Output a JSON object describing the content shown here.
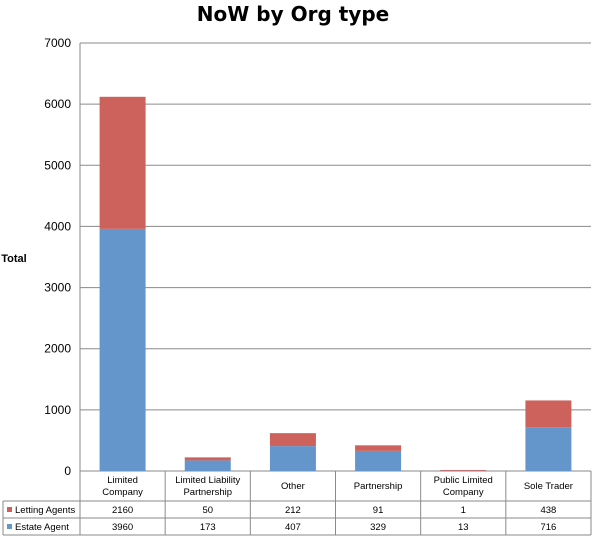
{
  "chart_data": {
    "type": "bar",
    "stacked": true,
    "title": "NoW by Org type",
    "xlabel": "",
    "ylabel": "Total",
    "ylim": [
      0,
      7000
    ],
    "yticks": [
      0,
      1000,
      2000,
      3000,
      4000,
      5000,
      6000,
      7000
    ],
    "grid": true,
    "legend_placement": "data-table",
    "categories": [
      [
        "Limited",
        "Company"
      ],
      [
        "Limited Liability",
        "Partnership"
      ],
      [
        "Other"
      ],
      [
        "Partnership"
      ],
      [
        "Public Limited",
        "Company"
      ],
      [
        "Sole Trader"
      ]
    ],
    "series": [
      {
        "name": "Estate Agent",
        "color": "#6496CC",
        "values": [
          3960,
          173,
          407,
          329,
          13,
          716
        ]
      },
      {
        "name": "Letting Agents",
        "color": "#CC625B",
        "values": [
          2160,
          50,
          212,
          91,
          1,
          438
        ]
      }
    ],
    "table_rows": [
      "Letting Agents",
      "Estate Agent"
    ]
  }
}
